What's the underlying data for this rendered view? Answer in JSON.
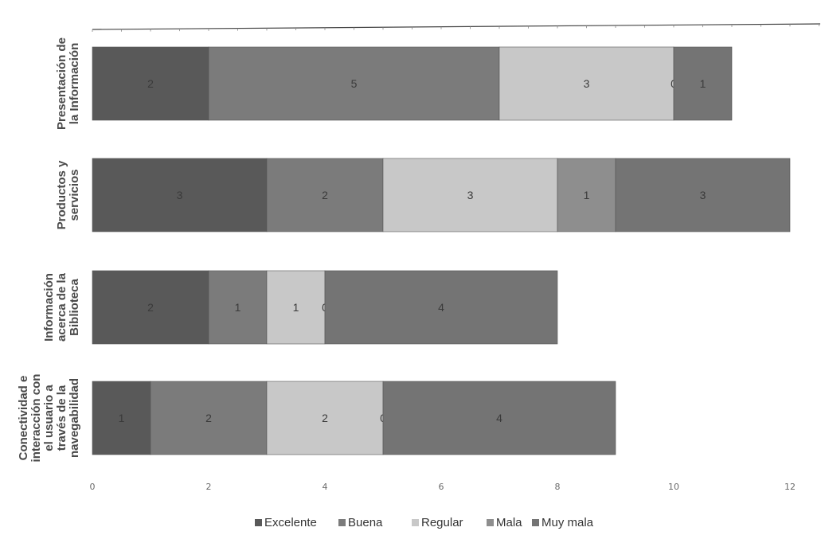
{
  "chart_data": {
    "type": "bar",
    "orientation": "horizontal",
    "stacked": true,
    "categories": [
      "Presentación de la Información",
      "Productos y servicios",
      "Información acerca de la Biblioteca",
      "Conectividad e interacción con el usuario a través de la navegabilidad"
    ],
    "category_lines": [
      [
        "Presentación de",
        "la Información"
      ],
      [
        "Productos y",
        "servicios"
      ],
      [
        "Información",
        "acerca de la",
        "Biblioteca"
      ],
      [
        "Conectividad e",
        "interacción con",
        "el usuario a",
        "través de la",
        "navegabilidad"
      ]
    ],
    "series": [
      {
        "name": "Excelente",
        "values": [
          2,
          3,
          2,
          1
        ],
        "color": "#595959"
      },
      {
        "name": "Buena",
        "values": [
          5,
          2,
          1,
          2
        ],
        "color": "#7b7b7b"
      },
      {
        "name": "Regular",
        "values": [
          3,
          3,
          1,
          2
        ],
        "color": "#c8c8c8"
      },
      {
        "name": "Mala",
        "values": [
          0,
          1,
          0,
          0
        ],
        "color": "#8e8e8e"
      },
      {
        "name": "Muy mala",
        "values": [
          1,
          3,
          4,
          4
        ],
        "color": "#747474"
      }
    ],
    "xlim": [
      0,
      12
    ],
    "xticks": [
      0,
      2,
      4,
      6,
      8,
      10,
      12
    ],
    "title": "",
    "xlabel": "",
    "ylabel": "",
    "legend_position": "bottom",
    "grid": false
  }
}
